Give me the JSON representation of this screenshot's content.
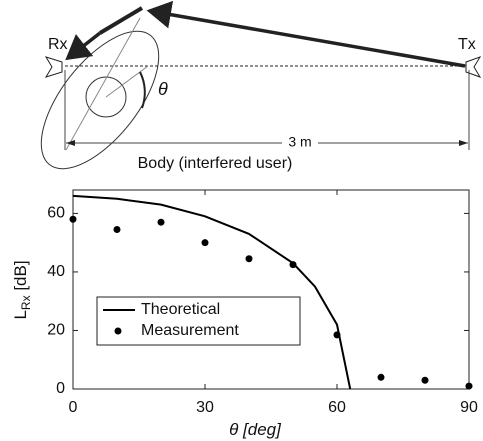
{
  "diagram": {
    "rx_label": "Rx",
    "tx_label": "Tx",
    "angle_label": "θ",
    "distance_label": "3 m",
    "body_label": "Body (interfered user)"
  },
  "chart_data": {
    "type": "line",
    "x_label": "θ [deg]",
    "y_label": {
      "main": "L",
      "sub": "Rx",
      "unit": " [dB]"
    },
    "xlim": [
      0,
      90
    ],
    "xticks": [
      0,
      30,
      60,
      90
    ],
    "ylim": [
      0,
      68
    ],
    "yticks": [
      0,
      20,
      40,
      60
    ],
    "legend": "lower left",
    "series": [
      {
        "name": "Theoretical",
        "mode": "line",
        "color": "#000000",
        "x": [
          0,
          10,
          20,
          30,
          40,
          50,
          55,
          60,
          63
        ],
        "values": [
          66,
          65,
          63,
          59,
          53,
          43,
          35,
          22,
          0
        ]
      },
      {
        "name": "Measurement",
        "mode": "markers",
        "color": "#000000",
        "x": [
          0,
          10,
          20,
          30,
          40,
          50,
          60,
          70,
          80,
          90
        ],
        "values": [
          58,
          54.5,
          57,
          50,
          44.5,
          42.5,
          18.5,
          4,
          3,
          1
        ]
      }
    ]
  }
}
